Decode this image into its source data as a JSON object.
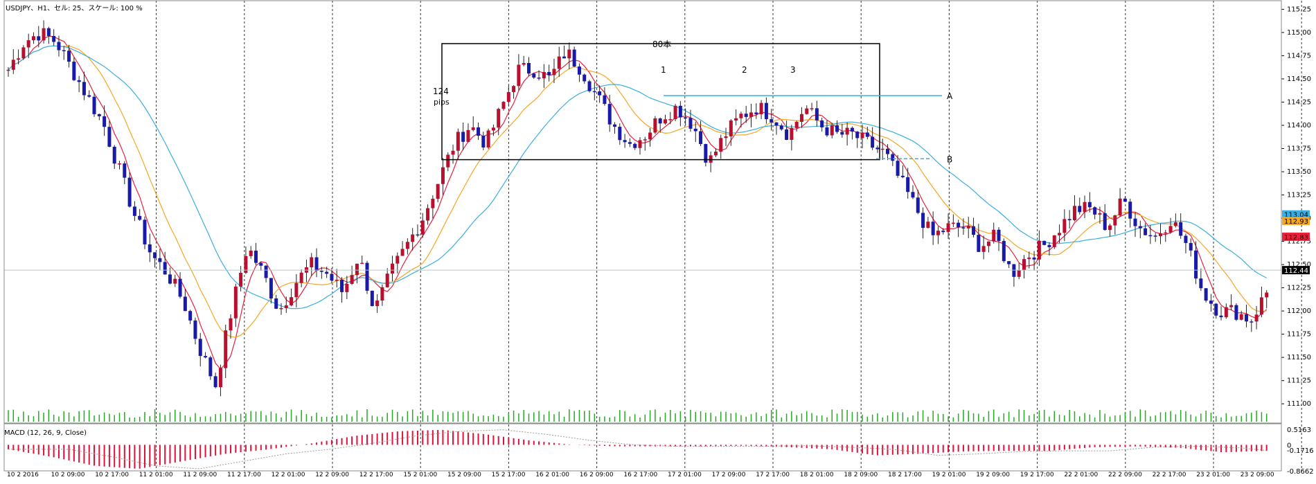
{
  "header": {
    "title": "USDJPY、H1、セル: 25、スケール: 100 %",
    "macd_title": "MACD (12, 26, 9, Close)"
  },
  "annotations": {
    "box_label": "80本",
    "pips_line1": "124",
    "pips_line2": "pips",
    "touch_labels": [
      "1",
      "2",
      "3"
    ],
    "level_a": "A",
    "level_b": "B"
  },
  "colors": {
    "bull_candle": "#b8102e",
    "bear_candle": "#1a1aa8",
    "ma_fast": "#e8203c",
    "ma_mid": "#f5a623",
    "ma_slow": "#3aaee0",
    "volume": "#22aa22",
    "macd_hist": "#e0103a",
    "macd_signal": "#999999",
    "level_line": "#3aaee0"
  },
  "chart_data": {
    "type": "candlestick",
    "symbol": "USDJPY",
    "timeframe": "H1",
    "y_axis": {
      "range": [
        110.8,
        115.35
      ],
      "ticks": [
        "115.25",
        "115.00",
        "114.75",
        "114.50",
        "114.25",
        "114.00",
        "113.75",
        "113.50",
        "113.25",
        "113.00",
        "112.75",
        "112.50",
        "112.25",
        "112.00",
        "111.75",
        "111.50",
        "111.25",
        "111.00"
      ]
    },
    "x_axis": {
      "tick_labels": [
        "10 2 2016",
        "10 2 09:00",
        "10 2 17:00",
        "11 2 01:00",
        "11 2 09:00",
        "11 2 17:00",
        "12 2 01:00",
        "12 2 09:00",
        "12 2 17:00",
        "15 2 01:00",
        "15 2 09:00",
        "15 2 17:00",
        "16 2 01:00",
        "16 2 09:00",
        "16 2 17:00",
        "17 2 01:00",
        "17 2 09:00",
        "17 2 17:00",
        "18 2 01:00",
        "18 2 09:00",
        "18 2 17:00",
        "19 2 01:00",
        "19 2 09:00",
        "19 2 17:00",
        "22 2 01:00",
        "22 2 09:00",
        "22 2 17:00",
        "23 2 01:00",
        "23 2 09:00"
      ]
    },
    "price_badges": [
      {
        "value": "113.04",
        "color": "#3aaee0",
        "text_color": "#000000"
      },
      {
        "value": "112.93",
        "color": "#f5a623",
        "text_color": "#000000"
      },
      {
        "value": "112.83",
        "color": "#e8203c",
        "text_color": "#000000"
      },
      {
        "value": "112.44",
        "color": "#000000",
        "text_color": "#ffffff"
      }
    ],
    "current_price": 112.44,
    "range_box": {
      "high": 114.88,
      "low": 113.63,
      "label": "80本",
      "bars": 80
    },
    "level_a": 114.32,
    "level_b": 113.64,
    "price_path": [
      114.6,
      114.9,
      115.0,
      114.9,
      114.6,
      114.3,
      114.0,
      113.5,
      113.0,
      112.6,
      112.4,
      112.1,
      111.6,
      111.2,
      112.0,
      112.7,
      112.4,
      112.0,
      112.3,
      112.5,
      112.4,
      112.2,
      112.6,
      112.0,
      112.4,
      112.7,
      113.0,
      113.4,
      113.8,
      114.0,
      113.8,
      114.2,
      114.6,
      114.6,
      114.5,
      114.8,
      114.6,
      114.3,
      114.0,
      113.8,
      113.9,
      114.1,
      114.2,
      114.0,
      113.6,
      113.9,
      114.1,
      114.2,
      114.1,
      113.9,
      114.2,
      114.0,
      113.9,
      113.9,
      113.8,
      113.7,
      113.4,
      113.1,
      112.8,
      112.9,
      112.9,
      112.7,
      112.8,
      112.4,
      112.6,
      112.7,
      112.9,
      113.1,
      113.1,
      112.9,
      113.2,
      112.9,
      112.8,
      113.0,
      112.7,
      112.2,
      112.0,
      112.0,
      111.9,
      112.2
    ],
    "macd": {
      "axis_labels": [
        "0.5163",
        "0",
        "-0.1716",
        "-0.8662"
      ],
      "current_value": "-0.1716",
      "hist_path": [
        -0.15,
        -0.4,
        -0.7,
        -0.8,
        -0.55,
        -0.3,
        -0.15,
        0.05,
        0.3,
        0.45,
        0.5,
        0.35,
        0.15,
        0.0,
        -0.05,
        -0.05,
        -0.05,
        -0.03,
        -0.08,
        -0.15,
        -0.35,
        -0.3,
        -0.22,
        -0.2,
        -0.2,
        -0.08,
        -0.05,
        -0.1,
        -0.25,
        -0.2
      ]
    }
  }
}
